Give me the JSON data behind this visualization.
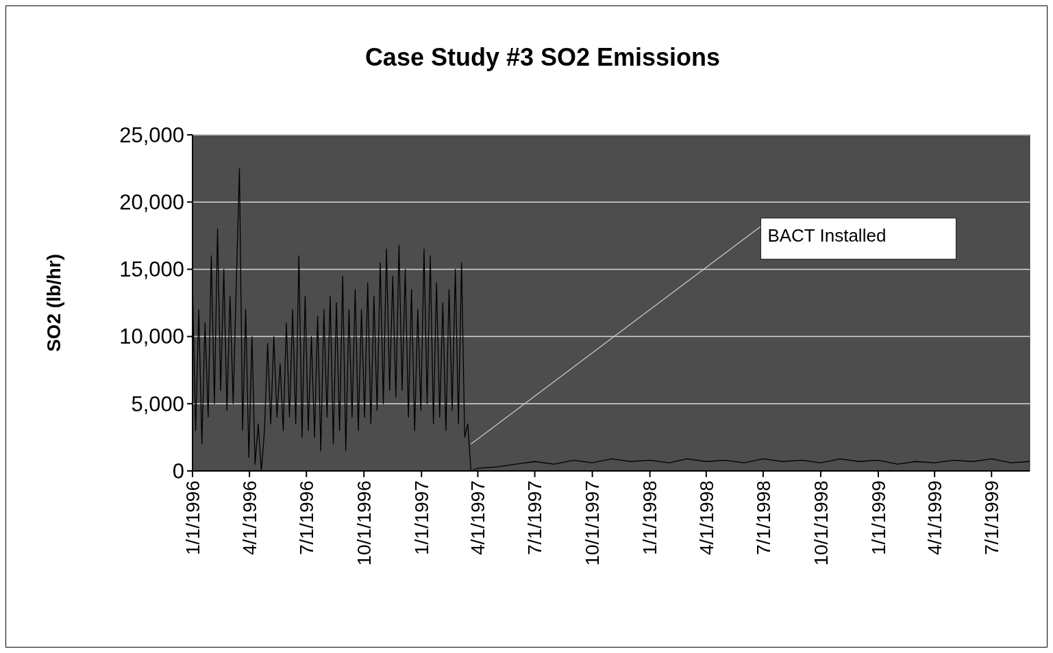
{
  "chart_data": {
    "type": "line",
    "title": "Case Study #3 SO2 Emissions",
    "ylabel": "SO2 (lb/hr)",
    "x": [
      "1996-01-01",
      "1996-01-06",
      "1996-01-11",
      "1996-01-16",
      "1996-01-21",
      "1996-01-26",
      "1996-01-31",
      "1996-02-05",
      "1996-02-10",
      "1996-02-15",
      "1996-02-20",
      "1996-02-25",
      "1996-03-01",
      "1996-03-06",
      "1996-03-11",
      "1996-03-16",
      "1996-03-21",
      "1996-03-26",
      "1996-03-31",
      "1996-04-05",
      "1996-04-10",
      "1996-04-15",
      "1996-04-20",
      "1996-04-25",
      "1996-04-30",
      "1996-05-05",
      "1996-05-10",
      "1996-05-15",
      "1996-05-20",
      "1996-05-25",
      "1996-05-30",
      "1996-06-04",
      "1996-06-09",
      "1996-06-14",
      "1996-06-19",
      "1996-06-24",
      "1996-06-29",
      "1996-07-04",
      "1996-07-09",
      "1996-07-14",
      "1996-07-19",
      "1996-07-24",
      "1996-07-29",
      "1996-08-03",
      "1996-08-08",
      "1996-08-13",
      "1996-08-18",
      "1996-08-23",
      "1996-08-28",
      "1996-09-02",
      "1996-09-07",
      "1996-09-12",
      "1996-09-17",
      "1996-09-22",
      "1996-09-27",
      "1996-10-02",
      "1996-10-07",
      "1996-10-12",
      "1996-10-17",
      "1996-10-22",
      "1996-10-27",
      "1996-11-01",
      "1996-11-06",
      "1996-11-11",
      "1996-11-16",
      "1996-11-21",
      "1996-11-26",
      "1996-12-01",
      "1996-12-06",
      "1996-12-11",
      "1996-12-16",
      "1996-12-21",
      "1996-12-26",
      "1996-12-31",
      "1997-01-05",
      "1997-01-10",
      "1997-01-15",
      "1997-01-20",
      "1997-01-25",
      "1997-01-30",
      "1997-02-04",
      "1997-02-09",
      "1997-02-14",
      "1997-02-19",
      "1997-02-24",
      "1997-03-01",
      "1997-03-06",
      "1997-03-11",
      "1997-03-16",
      "1997-03-21",
      "1997-04-01",
      "1997-05-01",
      "1997-06-01",
      "1997-07-01",
      "1997-08-01",
      "1997-09-01",
      "1997-10-01",
      "1997-11-01",
      "1997-12-01",
      "1998-01-01",
      "1998-02-01",
      "1998-03-01",
      "1998-04-01",
      "1998-05-01",
      "1998-06-01",
      "1998-07-01",
      "1998-08-01",
      "1998-09-01",
      "1998-10-01",
      "1998-11-01",
      "1998-12-01",
      "1999-01-01",
      "1999-02-01",
      "1999-03-01",
      "1999-04-01",
      "1999-05-01",
      "1999-06-01",
      "1999-07-01",
      "1999-08-01",
      "1999-08-31"
    ],
    "series": [
      {
        "color": "#000000",
        "values": [
          14000,
          3000,
          12000,
          2000,
          11000,
          4000,
          16000,
          5000,
          18000,
          6000,
          15000,
          4500,
          13000,
          5000,
          14000,
          22500,
          3000,
          12000,
          1000,
          10000,
          500,
          3500,
          0,
          3000,
          9500,
          3500,
          10000,
          4000,
          8000,
          3000,
          11000,
          4000,
          12000,
          3500,
          16000,
          2500,
          13000,
          3000,
          10000,
          2500,
          11500,
          1500,
          12000,
          4000,
          13000,
          2000,
          12500,
          3000,
          14500,
          1500,
          12000,
          4000,
          13500,
          3000,
          12000,
          4000,
          14000,
          3500,
          13000,
          4500,
          15500,
          5000,
          16500,
          6000,
          14500,
          5500,
          16800,
          6000,
          15000,
          4000,
          13500,
          3000,
          12000,
          4500,
          16500,
          5000,
          16000,
          3500,
          14000,
          4000,
          12500,
          3000,
          13500,
          4500,
          15000,
          3500,
          15500,
          2500,
          3500,
          0,
          200,
          300,
          500,
          700,
          500,
          800,
          600,
          900,
          700,
          800,
          600,
          900,
          700,
          800,
          600,
          900,
          700,
          800,
          600,
          900,
          700,
          800,
          500,
          700,
          600,
          800,
          700,
          900,
          600,
          700
        ]
      }
    ],
    "xlim": [
      "1996-01-01",
      "1999-08-31"
    ],
    "xticks": [
      {
        "value": "1996-01-01",
        "label": "1/1/1996"
      },
      {
        "value": "1996-04-01",
        "label": "4/1/1996"
      },
      {
        "value": "1996-07-01",
        "label": "7/1/1996"
      },
      {
        "value": "1996-10-01",
        "label": "10/1/1996"
      },
      {
        "value": "1997-01-01",
        "label": "1/1/1997"
      },
      {
        "value": "1997-04-01",
        "label": "4/1/1997"
      },
      {
        "value": "1997-07-01",
        "label": "7/1/1997"
      },
      {
        "value": "1997-10-01",
        "label": "10/1/1997"
      },
      {
        "value": "1998-01-01",
        "label": "1/1/1998"
      },
      {
        "value": "1998-04-01",
        "label": "4/1/1998"
      },
      {
        "value": "1998-07-01",
        "label": "7/1/1998"
      },
      {
        "value": "1998-10-01",
        "label": "10/1/1998"
      },
      {
        "value": "1999-01-01",
        "label": "1/1/1999"
      },
      {
        "value": "1999-04-01",
        "label": "4/1/1999"
      },
      {
        "value": "1999-07-01",
        "label": "7/1/1999"
      }
    ],
    "ylim": [
      0,
      25000
    ],
    "yticks": [
      {
        "value": 0,
        "label": "0"
      },
      {
        "value": 5000,
        "label": "5,000"
      },
      {
        "value": 10000,
        "label": "10,000"
      },
      {
        "value": 15000,
        "label": "15,000"
      },
      {
        "value": 20000,
        "label": "20,000"
      },
      {
        "value": 25000,
        "label": "25,000"
      }
    ],
    "grid": "y",
    "annotations": [
      {
        "text": "BACT Installed",
        "x": "1997-03-21",
        "y": 2000
      }
    ]
  }
}
